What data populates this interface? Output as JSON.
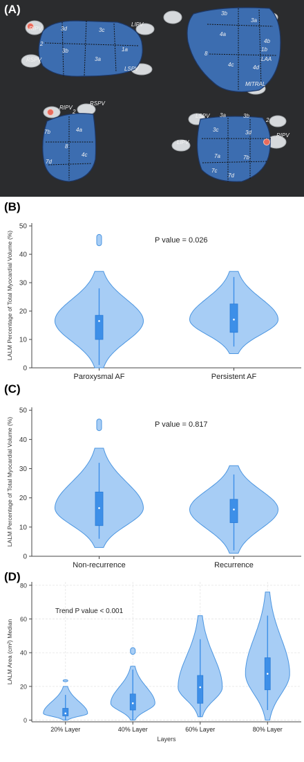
{
  "panels": {
    "a": "(A)",
    "b": "(B)",
    "c": "(C)",
    "d": "(D)"
  },
  "anatomy": {
    "view1": [
      "RIPV",
      "3d",
      "3c",
      "LIPV",
      "2",
      "3b",
      "1a",
      "RSPV",
      "3a",
      "LSPV"
    ],
    "view2": [
      "3b",
      "3a",
      "4a",
      "4b",
      "1b",
      "LAA",
      "8",
      "4c",
      "4d",
      "MITRAL"
    ],
    "view3": [
      "RIPV",
      "2",
      "RSPV",
      "4a",
      "7b",
      "8",
      "4c",
      "7d"
    ],
    "view4": [
      "LSPV",
      "3a",
      "3b",
      "2",
      "LIPV",
      "3c",
      "3d",
      "RIPV",
      "7a",
      "7b",
      "7c",
      "7d"
    ]
  },
  "colors": {
    "violin_fill": "#a7cdf5",
    "violin_edge": "#4b95e0",
    "box": "#3d8fe8",
    "heart": "#3c6db0",
    "background_a": "#2b2c2e"
  },
  "chart_data": [
    {
      "type": "violin",
      "ylabel": "LALM Percentage of Total Myocardial Volume (%)",
      "categories": [
        "Paroxysmal AF",
        "Persistent AF"
      ],
      "yticks": [
        0,
        10,
        20,
        30,
        40,
        50
      ],
      "ylim": [
        0,
        51
      ],
      "annotation": "P value = 0.026",
      "series": [
        {
          "q1": 10,
          "median": 16.5,
          "q3": 18.5,
          "whisker_low": 1,
          "whisker_high": 28,
          "min": 0,
          "max": 34,
          "outliers_top": [
            43,
            47
          ]
        },
        {
          "q1": 12.5,
          "median": 17,
          "q3": 22.5,
          "whisker_low": 7.5,
          "whisker_high": 32,
          "min": 5,
          "max": 34
        }
      ]
    },
    {
      "type": "violin",
      "ylabel": "LALM Percentage of Total Myocardial Volume (%)",
      "categories": [
        "Non-recurrence",
        "Recurrence"
      ],
      "yticks": [
        0,
        10,
        20,
        30,
        40,
        50
      ],
      "ylim": [
        0,
        51
      ],
      "annotation": "P value = 0.817",
      "series": [
        {
          "q1": 10.5,
          "median": 16.5,
          "q3": 22,
          "whisker_low": 6,
          "whisker_high": 32,
          "min": 3,
          "max": 37,
          "outliers_top": [
            43,
            47
          ]
        },
        {
          "q1": 11.5,
          "median": 16,
          "q3": 19.5,
          "whisker_low": 2,
          "whisker_high": 28,
          "min": 1,
          "max": 31
        }
      ]
    },
    {
      "type": "violin",
      "ylabel": "LALM Area (cm²) Median",
      "xlabel": "Layers",
      "categories": [
        "20% Layer",
        "40% Layer",
        "60% Layer",
        "80% Layer"
      ],
      "yticks": [
        0,
        20,
        40,
        60,
        80
      ],
      "ylim": [
        -1,
        82
      ],
      "annotation": "Trend P value < 0.001",
      "series": [
        {
          "q1": 2.5,
          "median": 4,
          "q3": 7,
          "whisker_low": 0,
          "whisker_high": 15,
          "min": 0,
          "max": 20,
          "outliers_top": [
            24
          ]
        },
        {
          "q1": 6,
          "median": 10,
          "q3": 15.5,
          "whisker_low": 0,
          "whisker_high": 30,
          "min": 0,
          "max": 32,
          "outliers_top": [
            39,
            43
          ]
        },
        {
          "q1": 10,
          "median": 19.5,
          "q3": 26.5,
          "whisker_low": 2,
          "whisker_high": 48,
          "min": 2,
          "max": 62
        },
        {
          "q1": 18,
          "median": 27.5,
          "q3": 37,
          "whisker_low": 6,
          "whisker_high": 62,
          "min": 0,
          "max": 76
        }
      ]
    }
  ]
}
